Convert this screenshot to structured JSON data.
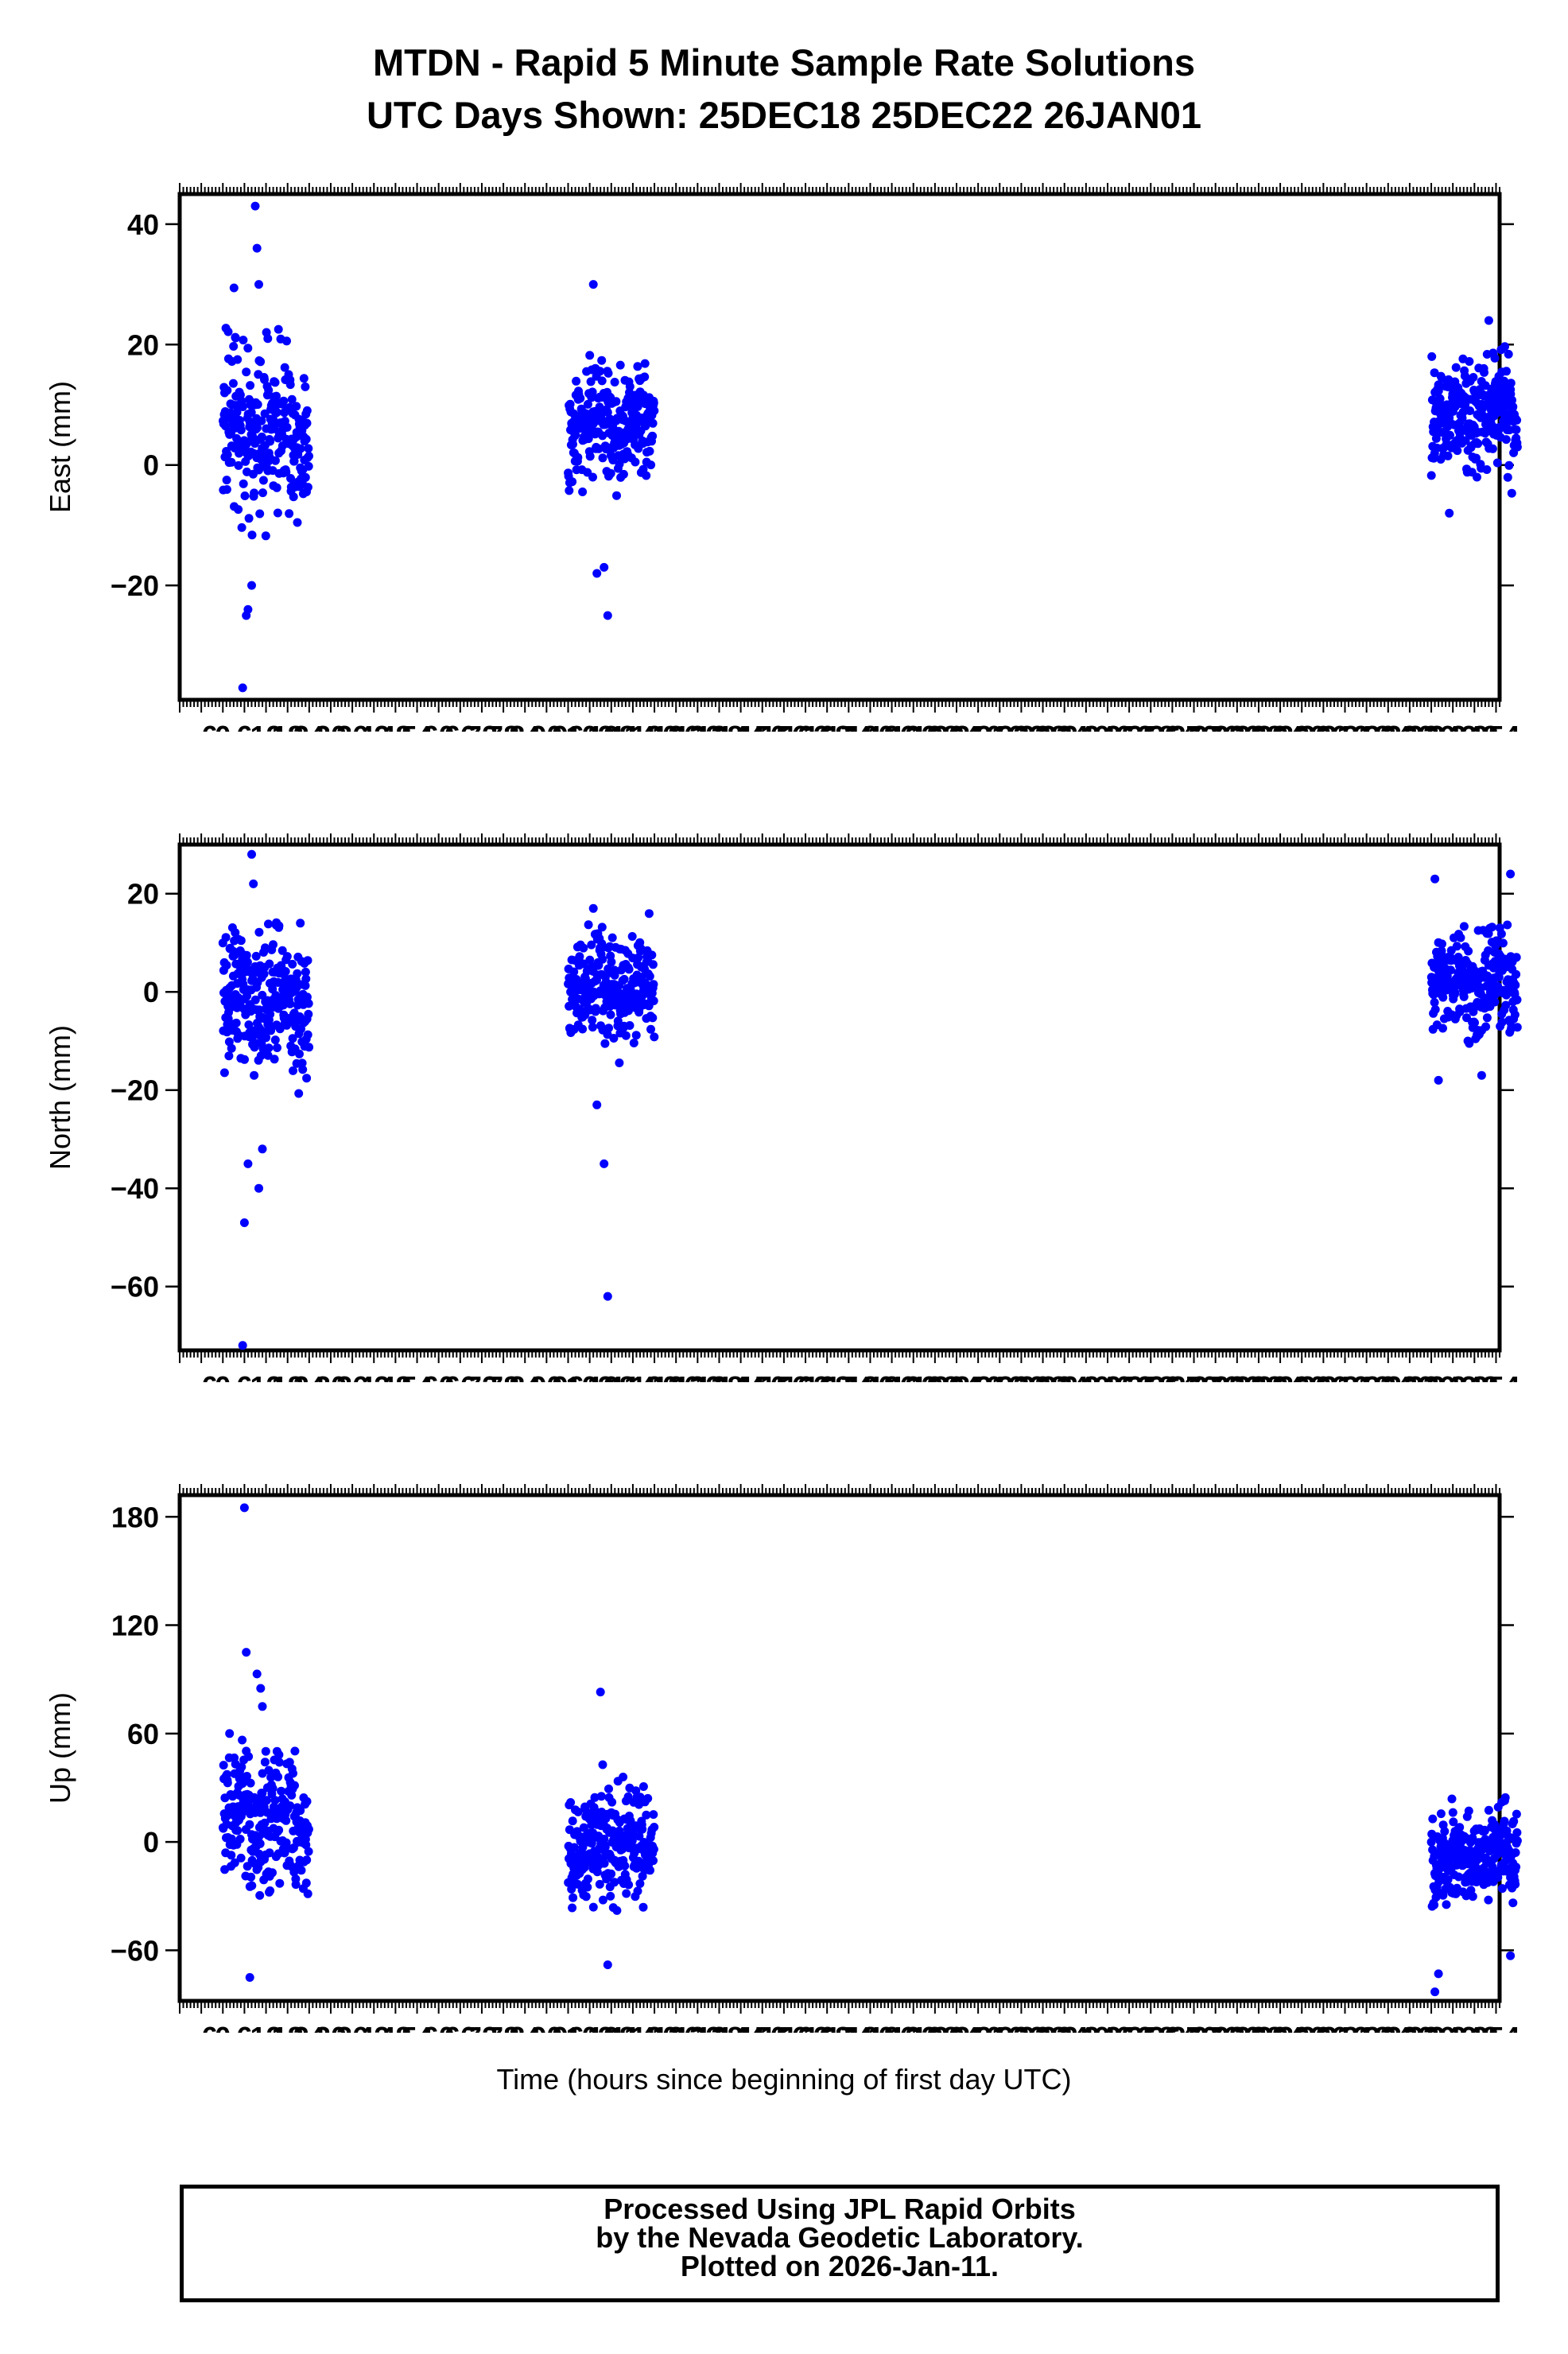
{
  "title": {
    "line1": "MTDN - Rapid 5 Minute Sample Rate Solutions",
    "line2": "UTC Days Shown:  25DEC18 25DEC22 26JAN01"
  },
  "xlabel": "Time (hours since beginning of first day UTC)",
  "footer": {
    "line1": "Processed Using JPL Rapid Orbits",
    "line2": "by the Nevada Geodetic Laboratory.",
    "line3": "Plotted on 2026-Jan-11."
  },
  "colors": {
    "points": "#0000ff",
    "frame": "#000000"
  },
  "chart_data": [
    {
      "type": "scatter",
      "ylabel": "East (mm)",
      "xlim": [
        -12,
        355
      ],
      "ylim": [
        -39,
        45
      ],
      "x_ticks": [
        -6,
        0,
        6,
        12,
        18,
        24,
        30,
        36,
        42,
        48,
        54,
        60,
        66,
        72,
        78,
        84,
        90,
        96,
        102,
        108,
        114,
        120,
        126,
        132,
        138,
        144,
        150,
        156,
        162,
        168,
        174,
        180,
        186,
        192,
        198,
        204,
        210,
        216,
        222,
        228,
        234,
        240,
        246,
        252,
        258,
        264,
        270,
        276,
        282,
        288,
        294,
        300,
        306,
        312,
        318,
        324,
        330,
        336,
        342,
        348,
        354
      ],
      "x_tick_labels": [
        "−6",
        "0",
        "6",
        "12",
        "18",
        "24",
        "30",
        "36",
        "42",
        "48",
        "54",
        "60",
        "66",
        "72",
        "78",
        "84",
        "90",
        "96",
        "102",
        "108",
        "114",
        "120",
        "126",
        "132",
        "138",
        "144",
        "150",
        "156",
        "162",
        "168",
        "174",
        "180",
        "186",
        "192",
        "198",
        "204",
        "210",
        "216",
        "222",
        "228",
        "234",
        "240",
        "246",
        "252",
        "258",
        "264",
        "270",
        "276",
        "282",
        "288",
        "294",
        "300",
        "306",
        "312",
        "318",
        "324",
        "330",
        "336",
        "342",
        "348",
        "354"
      ],
      "y_ticks": [
        -20,
        0,
        20,
        40
      ],
      "y_tick_labels": [
        "−20",
        "0",
        "20",
        "40"
      ],
      "clusters": [
        {
          "x_range": [
            0,
            24
          ],
          "center_y": 6,
          "spread_y": 7,
          "n": 260
        },
        {
          "x_range": [
            96,
            120
          ],
          "center_y": 7,
          "spread_y": 4.5,
          "n": 260
        },
        {
          "x_range": [
            336,
            360
          ],
          "center_y": 8,
          "spread_y": 4.5,
          "n": 260
        }
      ],
      "outliers": [
        [
          5.5,
          -37
        ],
        [
          6.5,
          -25
        ],
        [
          7,
          -24
        ],
        [
          8,
          -20
        ],
        [
          9,
          43
        ],
        [
          9.5,
          36
        ],
        [
          10,
          30
        ],
        [
          12.5,
          21
        ],
        [
          103,
          30
        ],
        [
          104,
          -18
        ],
        [
          106,
          -17
        ],
        [
          107,
          -25
        ],
        [
          341,
          -8
        ],
        [
          352,
          24
        ]
      ]
    },
    {
      "type": "scatter",
      "ylabel": "North (mm)",
      "xlim": [
        -12,
        355
      ],
      "ylim": [
        -73,
        30
      ],
      "x_ticks": [
        -6,
        0,
        6,
        12,
        18,
        24,
        30,
        36,
        42,
        48,
        54,
        60,
        66,
        72,
        78,
        84,
        90,
        96,
        102,
        108,
        114,
        120,
        126,
        132,
        138,
        144,
        150,
        156,
        162,
        168,
        174,
        180,
        186,
        192,
        198,
        204,
        210,
        216,
        222,
        228,
        234,
        240,
        246,
        252,
        258,
        264,
        270,
        276,
        282,
        288,
        294,
        300,
        306,
        312,
        318,
        324,
        330,
        336,
        342,
        348,
        354
      ],
      "x_tick_labels": [
        "−6",
        "0",
        "6",
        "12",
        "18",
        "24",
        "30",
        "36",
        "42",
        "48",
        "54",
        "60",
        "66",
        "72",
        "78",
        "84",
        "90",
        "96",
        "102",
        "108",
        "114",
        "120",
        "126",
        "132",
        "138",
        "144",
        "150",
        "156",
        "162",
        "168",
        "174",
        "180",
        "186",
        "192",
        "198",
        "204",
        "210",
        "216",
        "222",
        "228",
        "234",
        "240",
        "246",
        "252",
        "258",
        "264",
        "270",
        "276",
        "282",
        "288",
        "294",
        "300",
        "306",
        "312",
        "318",
        "324",
        "330",
        "336",
        "342",
        "348",
        "354"
      ],
      "y_ticks": [
        -60,
        -40,
        -20,
        0,
        20
      ],
      "y_tick_labels": [
        "−60",
        "−40",
        "−20",
        "0",
        "20"
      ],
      "clusters": [
        {
          "x_range": [
            0,
            24
          ],
          "center_y": -2,
          "spread_y": 7,
          "n": 260
        },
        {
          "x_range": [
            96,
            120
          ],
          "center_y": 1,
          "spread_y": 5,
          "n": 260
        },
        {
          "x_range": [
            336,
            360
          ],
          "center_y": 2,
          "spread_y": 5,
          "n": 260
        }
      ],
      "outliers": [
        [
          5.5,
          -72
        ],
        [
          6,
          -47
        ],
        [
          7,
          -35
        ],
        [
          8,
          28
        ],
        [
          8.5,
          22
        ],
        [
          10,
          -40
        ],
        [
          11,
          -32
        ],
        [
          103,
          17
        ],
        [
          104,
          -23
        ],
        [
          106,
          -35
        ],
        [
          107,
          -62
        ],
        [
          337,
          23
        ],
        [
          338,
          -18
        ],
        [
          350,
          -17
        ],
        [
          358,
          24
        ]
      ]
    },
    {
      "type": "scatter",
      "ylabel": "Up (mm)",
      "xlim": [
        -12,
        355
      ],
      "ylim": [
        -88,
        192
      ],
      "x_ticks": [
        -6,
        0,
        6,
        12,
        18,
        24,
        30,
        36,
        42,
        48,
        54,
        60,
        66,
        72,
        78,
        84,
        90,
        96,
        102,
        108,
        114,
        120,
        126,
        132,
        138,
        144,
        150,
        156,
        162,
        168,
        174,
        180,
        186,
        192,
        198,
        204,
        210,
        216,
        222,
        228,
        234,
        240,
        246,
        252,
        258,
        264,
        270,
        276,
        282,
        288,
        294,
        300,
        306,
        312,
        318,
        324,
        330,
        336,
        342,
        348,
        354
      ],
      "x_tick_labels": [
        "−6",
        "0",
        "6",
        "12",
        "18",
        "24",
        "30",
        "36",
        "42",
        "48",
        "54",
        "60",
        "66",
        "72",
        "78",
        "84",
        "90",
        "96",
        "102",
        "108",
        "114",
        "120",
        "126",
        "132",
        "138",
        "144",
        "150",
        "156",
        "162",
        "168",
        "174",
        "180",
        "186",
        "192",
        "198",
        "204",
        "210",
        "216",
        "222",
        "228",
        "234",
        "240",
        "246",
        "252",
        "258",
        "264",
        "270",
        "276",
        "282",
        "288",
        "294",
        "300",
        "306",
        "312",
        "318",
        "324",
        "330",
        "336",
        "342",
        "348",
        "354"
      ],
      "y_ticks": [
        -60,
        0,
        60,
        120,
        180
      ],
      "y_tick_labels": [
        "−60",
        "0",
        "60",
        "120",
        "180"
      ],
      "clusters": [
        {
          "x_range": [
            0,
            24
          ],
          "center_y": 12,
          "spread_y": 18,
          "n": 260
        },
        {
          "x_range": [
            96,
            120
          ],
          "center_y": -2,
          "spread_y": 15,
          "n": 260
        },
        {
          "x_range": [
            336,
            360
          ],
          "center_y": -10,
          "spread_y": 12,
          "n": 260
        }
      ],
      "outliers": [
        [
          6,
          185
        ],
        [
          6.5,
          105
        ],
        [
          7.5,
          -75
        ],
        [
          9.5,
          93
        ],
        [
          10.5,
          85
        ],
        [
          11,
          75
        ],
        [
          105,
          83
        ],
        [
          107,
          -68
        ],
        [
          337,
          -83
        ],
        [
          338,
          -73
        ],
        [
          358,
          -63
        ]
      ]
    }
  ]
}
